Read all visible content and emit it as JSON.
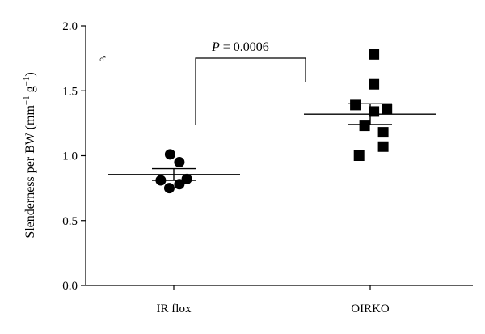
{
  "chart_data": {
    "type": "scatter",
    "title": "",
    "ylabel": {
      "main": "Slenderness per BW (mm",
      "sup1": "−1",
      "mid": " g",
      "sup2": "−1",
      "end": ")"
    },
    "xlabel": "",
    "ylim": [
      0,
      2
    ],
    "yticks": [
      "0.0",
      "0.5",
      "1.0",
      "1.5",
      "2.0"
    ],
    "ytick_values": [
      0,
      0.5,
      1.0,
      1.5,
      2.0
    ],
    "categories": [
      "IR flox",
      "OIRKO"
    ],
    "symbol": "♂",
    "significance": {
      "label_italic": "P",
      "label_rest": " = 0.0006",
      "between": [
        0,
        1
      ]
    },
    "series": [
      {
        "category": "IR flox",
        "marker": "circle",
        "values": [
          1.01,
          0.95,
          0.81,
          0.82,
          0.78,
          0.75
        ],
        "offsets": [
          -0.1,
          0.15,
          -0.35,
          0.35,
          0.15,
          -0.12
        ],
        "mean": 0.855,
        "sem_upper": 0.9,
        "sem_lower": 0.81
      },
      {
        "category": "OIRKO",
        "marker": "square",
        "values": [
          1.78,
          1.55,
          1.39,
          1.34,
          1.36,
          1.23,
          1.18,
          1.07,
          1.0
        ],
        "offsets": [
          0.1,
          0.1,
          -0.4,
          0.1,
          0.45,
          -0.15,
          0.35,
          0.35,
          -0.3
        ],
        "mean": 1.32,
        "sem_upper": 1.4,
        "sem_lower": 1.24
      }
    ]
  }
}
